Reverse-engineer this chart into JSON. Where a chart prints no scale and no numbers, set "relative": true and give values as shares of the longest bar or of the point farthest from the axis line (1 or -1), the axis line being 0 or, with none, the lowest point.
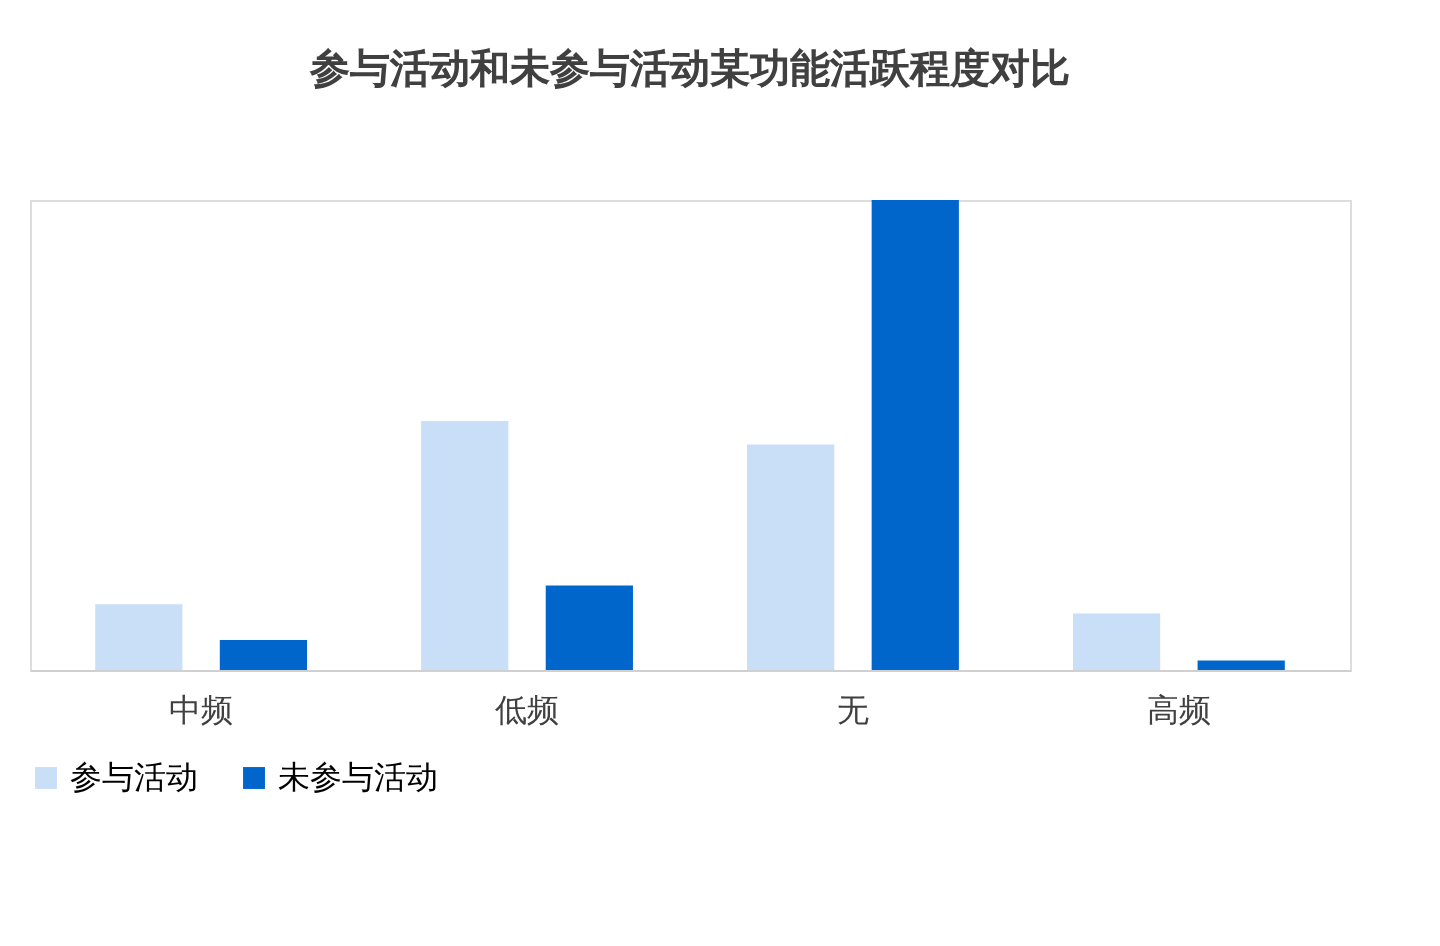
{
  "chart_data": {
    "type": "bar",
    "title": "参与活动和未参与活动某功能活跃程度对比",
    "categories": [
      "中频",
      "低频",
      "无",
      "高频"
    ],
    "relative": true,
    "legend": "bottom",
    "grid": false,
    "series": [
      {
        "name": "参与活动",
        "color": "#c9dff7",
        "values": [
          0.14,
          0.53,
          0.48,
          0.12
        ]
      },
      {
        "name": "未参与活动",
        "color": "#0066cc",
        "values": [
          0.064,
          0.18,
          1,
          0.02
        ]
      }
    ]
  }
}
